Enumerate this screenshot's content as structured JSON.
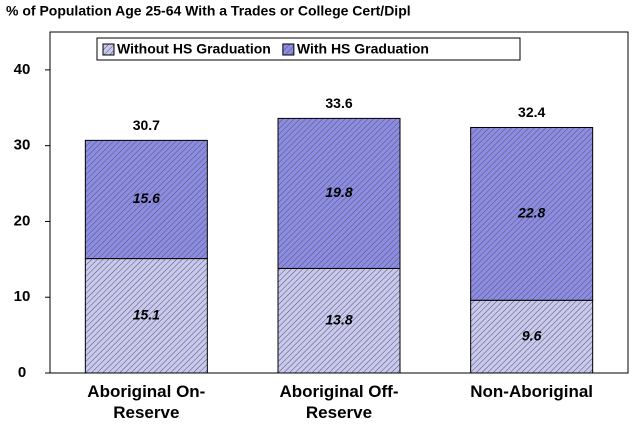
{
  "chart_data": {
    "type": "stacked_bar",
    "title": "% of Population Age 25-64 With a Trades or College Cert/Dipl",
    "categories": [
      "Aboriginal On-Reserve",
      "Aboriginal Off-Reserve",
      "Non-Aboriginal"
    ],
    "series": [
      {
        "name": "Without HS Graduation",
        "color": "#c8c8f0",
        "values": [
          15.1,
          13.8,
          9.6
        ]
      },
      {
        "name": "With HS Graduation",
        "color": "#8c8ce6",
        "values": [
          15.6,
          19.8,
          22.8
        ]
      }
    ],
    "totals": [
      30.7,
      33.6,
      32.4
    ],
    "ylim": [
      0,
      45
    ],
    "yticks": [
      0,
      10,
      20,
      30,
      40
    ],
    "legend": "top"
  }
}
